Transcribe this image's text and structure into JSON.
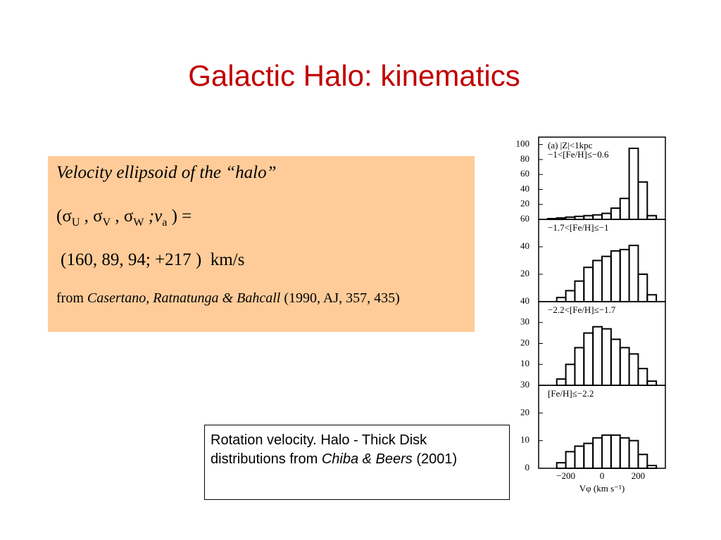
{
  "title": "Galactic Halo: kinematics",
  "box": {
    "heading": "Velocity ellipsoid of the “halo”",
    "sigma_line": [
      "(σ",
      "U",
      " , σ",
      "V",
      " , σ",
      "W",
      " ;",
      "v",
      "a",
      " ) ="
    ],
    "values_line": "(160, 89, 94; +217 )  km/s",
    "source": [
      "from ",
      "Casertano, Ratnatunga & Bahcall",
      " (1990, AJ, 357, 435)"
    ]
  },
  "caption": [
    "Rotation velocity. Halo - Thick Disk distributions from ",
    "Chiba & Beers",
    " (2001)"
  ],
  "chart_data": [
    {
      "type": "histogram",
      "annotations": [
        "(a) |Z|<1kpc",
        "−1<[Fe/H]≤−0.6"
      ],
      "bins": [
        -350,
        -300,
        -250,
        -200,
        -150,
        -100,
        -50,
        0,
        50,
        100,
        150,
        200,
        250,
        300,
        350
      ],
      "values": [
        0,
        1,
        2,
        3,
        4,
        5,
        6,
        8,
        15,
        28,
        95,
        50,
        5,
        0
      ],
      "xlim": [
        -350,
        350
      ],
      "ylim": [
        0,
        110
      ],
      "yticks": [
        20,
        40,
        60,
        80,
        100
      ]
    },
    {
      "type": "histogram",
      "annotations": [
        "−1.7<[Fe/H]≤−1"
      ],
      "bins": [
        -350,
        -300,
        -250,
        -200,
        -150,
        -100,
        -50,
        0,
        50,
        100,
        150,
        200,
        250,
        300,
        350
      ],
      "values": [
        0,
        0,
        3,
        8,
        15,
        25,
        30,
        33,
        37,
        38,
        41,
        20,
        5,
        0
      ],
      "xlim": [
        -350,
        350
      ],
      "ylim": [
        0,
        60
      ],
      "yticks": [
        20,
        40,
        60
      ]
    },
    {
      "type": "histogram",
      "annotations": [
        "−2.2<[Fe/H]≤−1.7"
      ],
      "bins": [
        -350,
        -300,
        -250,
        -200,
        -150,
        -100,
        -50,
        0,
        50,
        100,
        150,
        200,
        250,
        300,
        350
      ],
      "values": [
        0,
        0,
        3,
        10,
        18,
        25,
        28,
        27,
        22,
        18,
        15,
        8,
        2,
        0
      ],
      "xlim": [
        -350,
        350
      ],
      "ylim": [
        0,
        40
      ],
      "yticks": [
        10,
        20,
        30,
        40
      ]
    },
    {
      "type": "histogram",
      "annotations": [
        "[Fe/H]≤−2.2"
      ],
      "bins": [
        -350,
        -300,
        -250,
        -200,
        -150,
        -100,
        -50,
        0,
        50,
        100,
        150,
        200,
        250,
        300,
        350
      ],
      "values": [
        0,
        0,
        2,
        6,
        8,
        9,
        11,
        12,
        12,
        11,
        10,
        5,
        1,
        0
      ],
      "xlim": [
        -350,
        350
      ],
      "ylim": [
        0,
        30
      ],
      "yticks": [
        0,
        10,
        20,
        30
      ],
      "xticks": [
        {
          "value": -200,
          "label": "−200"
        },
        0,
        200
      ],
      "xlabel": "Vφ (km s⁻¹)"
    }
  ]
}
